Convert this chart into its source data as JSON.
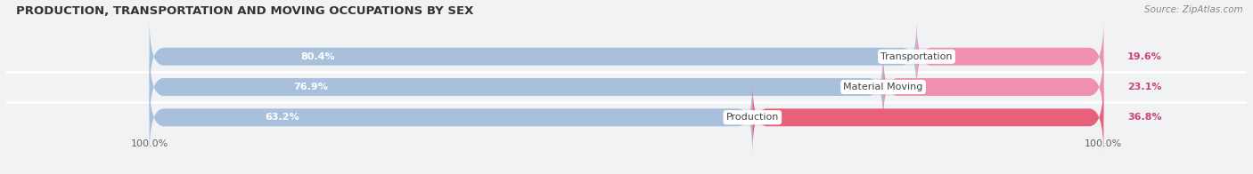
{
  "title": "PRODUCTION, TRANSPORTATION AND MOVING OCCUPATIONS BY SEX",
  "source": "Source: ZipAtlas.com",
  "categories": [
    "Transportation",
    "Material Moving",
    "Production"
  ],
  "male_pct": [
    80.4,
    76.9,
    63.2
  ],
  "female_pct": [
    19.6,
    23.1,
    36.8
  ],
  "male_color": "#a8c0dc",
  "female_color": "#f090b0",
  "female_color_production": "#e8607a",
  "bar_bg_color": "#e2e6ea",
  "bg_color": "#f0f2f4",
  "title_fontsize": 9.5,
  "source_fontsize": 7.5,
  "label_fontsize": 8,
  "tick_fontsize": 8,
  "cat_fontsize": 8,
  "bar_height": 0.58,
  "fig_width": 14.06,
  "fig_height": 1.96,
  "xlim_left": -15,
  "xlim_right": 115,
  "x_axis_left_label": "100.0%",
  "x_axis_right_label": "100.0%"
}
